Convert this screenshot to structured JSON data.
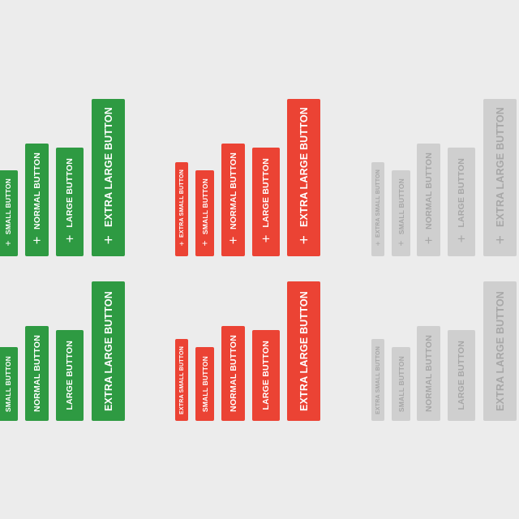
{
  "plus_glyph": "+",
  "colors": {
    "green": "#2e9a42",
    "red": "#eb4334",
    "gray": "#cfcfcf",
    "background": "#ececec"
  },
  "labels": {
    "extra_small": "EXTRA SMALL BUTTON",
    "small": "SMALL BUTTON",
    "normal": "NORMAL BUTTON",
    "large": "LARGE BUTTON",
    "extra_large": "EXTRA LARGE BUTTON"
  }
}
